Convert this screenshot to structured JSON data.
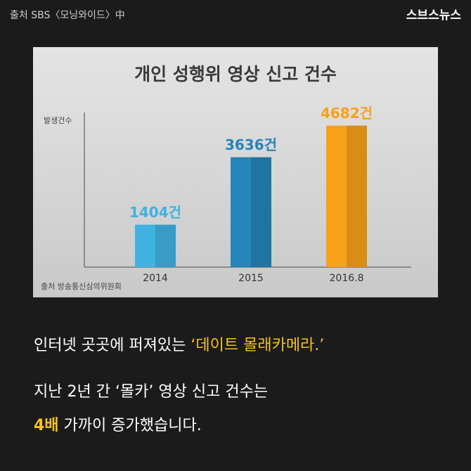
{
  "header": {
    "source": "출처 SBS〈모닝와이드〉中",
    "logo": "스브스뉴스"
  },
  "chart_data": {
    "type": "bar",
    "title": "개인 성행위 영상 신고 건수",
    "y_label": "발생건수",
    "categories": [
      "2014",
      "2015",
      "2016.8"
    ],
    "values": [
      1404,
      3636,
      4682
    ],
    "value_labels": [
      "1404건",
      "3636건",
      "4682건"
    ],
    "colors": [
      "#3fb2e2",
      "#2485b8",
      "#f7a01a"
    ],
    "ylim": [
      0,
      5000
    ],
    "source": "출처 방송통신심의위원회"
  },
  "caption": {
    "line1": "인터넷 곳곳에 퍼져있는 ",
    "line1_highlight": "‘데이트 몰래카메라.’",
    "line2": "지난 2년 간 ‘몰카’ 영상 신고 건수는",
    "line3_highlight": "4배",
    "line3": " 가까이 증가했습니다."
  }
}
